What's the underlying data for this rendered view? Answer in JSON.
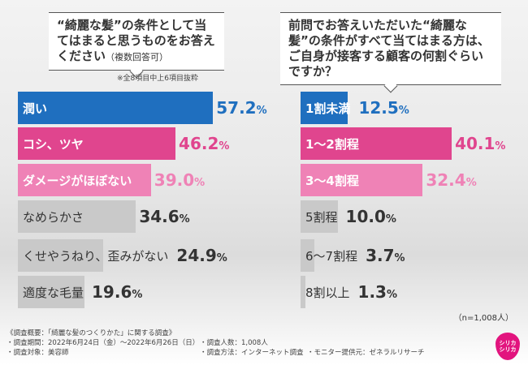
{
  "chart_data": [
    {
      "type": "bar",
      "orientation": "horizontal",
      "title": "“綺麗な髪”の条件として当てはまると思うものをお答えください",
      "title_note": "（複数回答可）",
      "subnote": "※全8項目中上6項目抜粋",
      "categories": [
        "潤い",
        "コシ、ツヤ",
        "ダメージがほぼない",
        "なめらかさ",
        "くせやうねり、歪みがない",
        "適度な毛量"
      ],
      "values": [
        57.2,
        46.2,
        39.0,
        34.6,
        24.9,
        19.6
      ],
      "unit": "%",
      "colors": [
        "#1f6fbf",
        "#e0458e",
        "#ef82b6",
        "#c9c9c9",
        "#c9c9c9",
        "#c9c9c9"
      ],
      "value_colors": [
        "#1f6fbf",
        "#e0458e",
        "#ef82b6",
        "#333333",
        "#333333",
        "#333333"
      ]
    },
    {
      "type": "bar",
      "orientation": "horizontal",
      "title": "前問でお答えいただいた“綺麗な髪”の条件がすべて当てはまる方は、ご自身が接客する顧客の何割ぐらいですか？",
      "categories": [
        "1割未満",
        "1〜2割程",
        "3〜4割程",
        "5割程",
        "6〜7割程",
        "8割以上"
      ],
      "values": [
        12.5,
        40.1,
        32.4,
        10.0,
        3.7,
        1.3
      ],
      "unit": "%",
      "colors": [
        "#1f6fbf",
        "#e0458e",
        "#ef82b6",
        "#c9c9c9",
        "#c9c9c9",
        "#c9c9c9"
      ],
      "value_colors": [
        "#1f6fbf",
        "#e0458e",
        "#ef82b6",
        "#333333",
        "#333333",
        "#333333"
      ]
    }
  ],
  "sample": "（n=1,008人）",
  "footer": {
    "summary": "《調査概要：「綺麗な髪のつくりかた」に関する調査》",
    "period": "・調査期間：2022年6月24日（金）〜2022年6月26日（日）",
    "people": "・調査人数：1,008人",
    "target": "・調査対象：美容師",
    "method": "・調査方法：インターネット調査",
    "monitor": "・モニター提供元：ゼネラルリサーチ"
  },
  "logo": "シリカシリカ"
}
